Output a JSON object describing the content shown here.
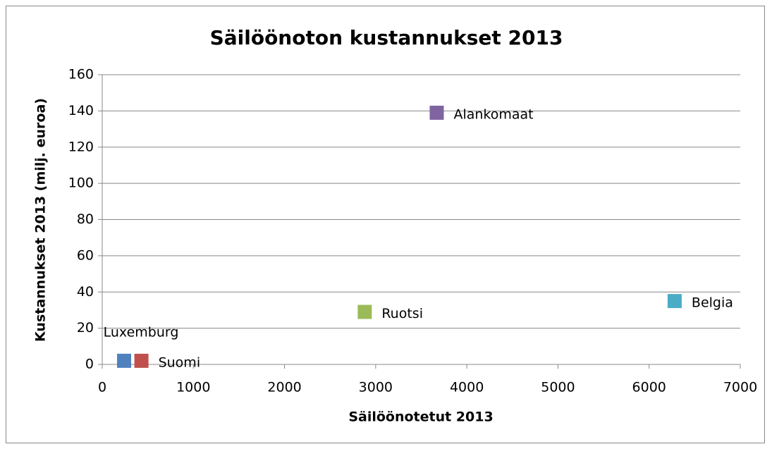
{
  "chart_data": {
    "type": "scatter",
    "title": "Säilöönoton kustannukset 2013",
    "x_label": "Säilöönotetut 2013",
    "y_label": "Kustannukset 2013 (milj. euroa)",
    "xlim": [
      0,
      7000
    ],
    "xticks": [
      0,
      1000,
      2000,
      3000,
      4000,
      5000,
      6000,
      7000
    ],
    "ylim": [
      0,
      160
    ],
    "yticks": [
      0,
      20,
      40,
      60,
      80,
      100,
      120,
      140,
      160
    ],
    "grid": true,
    "series": [
      {
        "name": "Luxemburg",
        "color": "#4f81bd",
        "x": [
          240
        ],
        "values": [
          2
        ],
        "label_position": "above"
      },
      {
        "name": "Suomi",
        "color": "#c0504d",
        "x": [
          430
        ],
        "values": [
          2
        ],
        "label_position": "right"
      },
      {
        "name": "Ruotsi",
        "color": "#9bbb59",
        "x": [
          2880
        ],
        "values": [
          29
        ],
        "label_position": "right"
      },
      {
        "name": "Alankomaat",
        "color": "#8064a2",
        "x": [
          3670
        ],
        "values": [
          139
        ],
        "label_position": "right"
      },
      {
        "name": "Belgia",
        "color": "#4bacc6",
        "x": [
          6280
        ],
        "values": [
          35
        ],
        "label_position": "right"
      }
    ]
  }
}
